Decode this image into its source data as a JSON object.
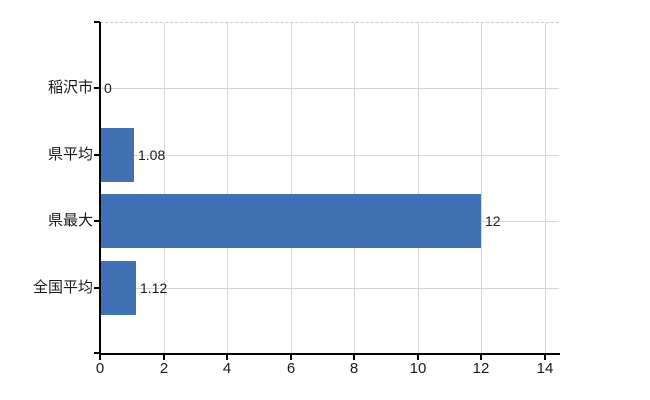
{
  "chart_data": {
    "type": "bar",
    "orientation": "horizontal",
    "title": "",
    "xlabel": "",
    "ylabel": "",
    "categories": [
      "稲沢市",
      "県平均",
      "県最大",
      "全国平均"
    ],
    "values": [
      0,
      1.08,
      12,
      1.12
    ],
    "value_labels": [
      "0",
      "1.08",
      "12",
      "1.12"
    ],
    "x_ticks": [
      "0",
      "2",
      "4",
      "6",
      "8",
      "10",
      "12",
      "14"
    ],
    "x_tick_values": [
      0,
      2,
      4,
      6,
      8,
      10,
      12,
      14
    ],
    "xlim": [
      0,
      14.44
    ],
    "grid": true,
    "legend": "none",
    "colors": {
      "bar": "#4071b4",
      "grid": "#d4d8d4",
      "border": "#c8ccc8",
      "axis": "#000000",
      "text": "#1a1a1a",
      "background": "#ffffff"
    }
  }
}
